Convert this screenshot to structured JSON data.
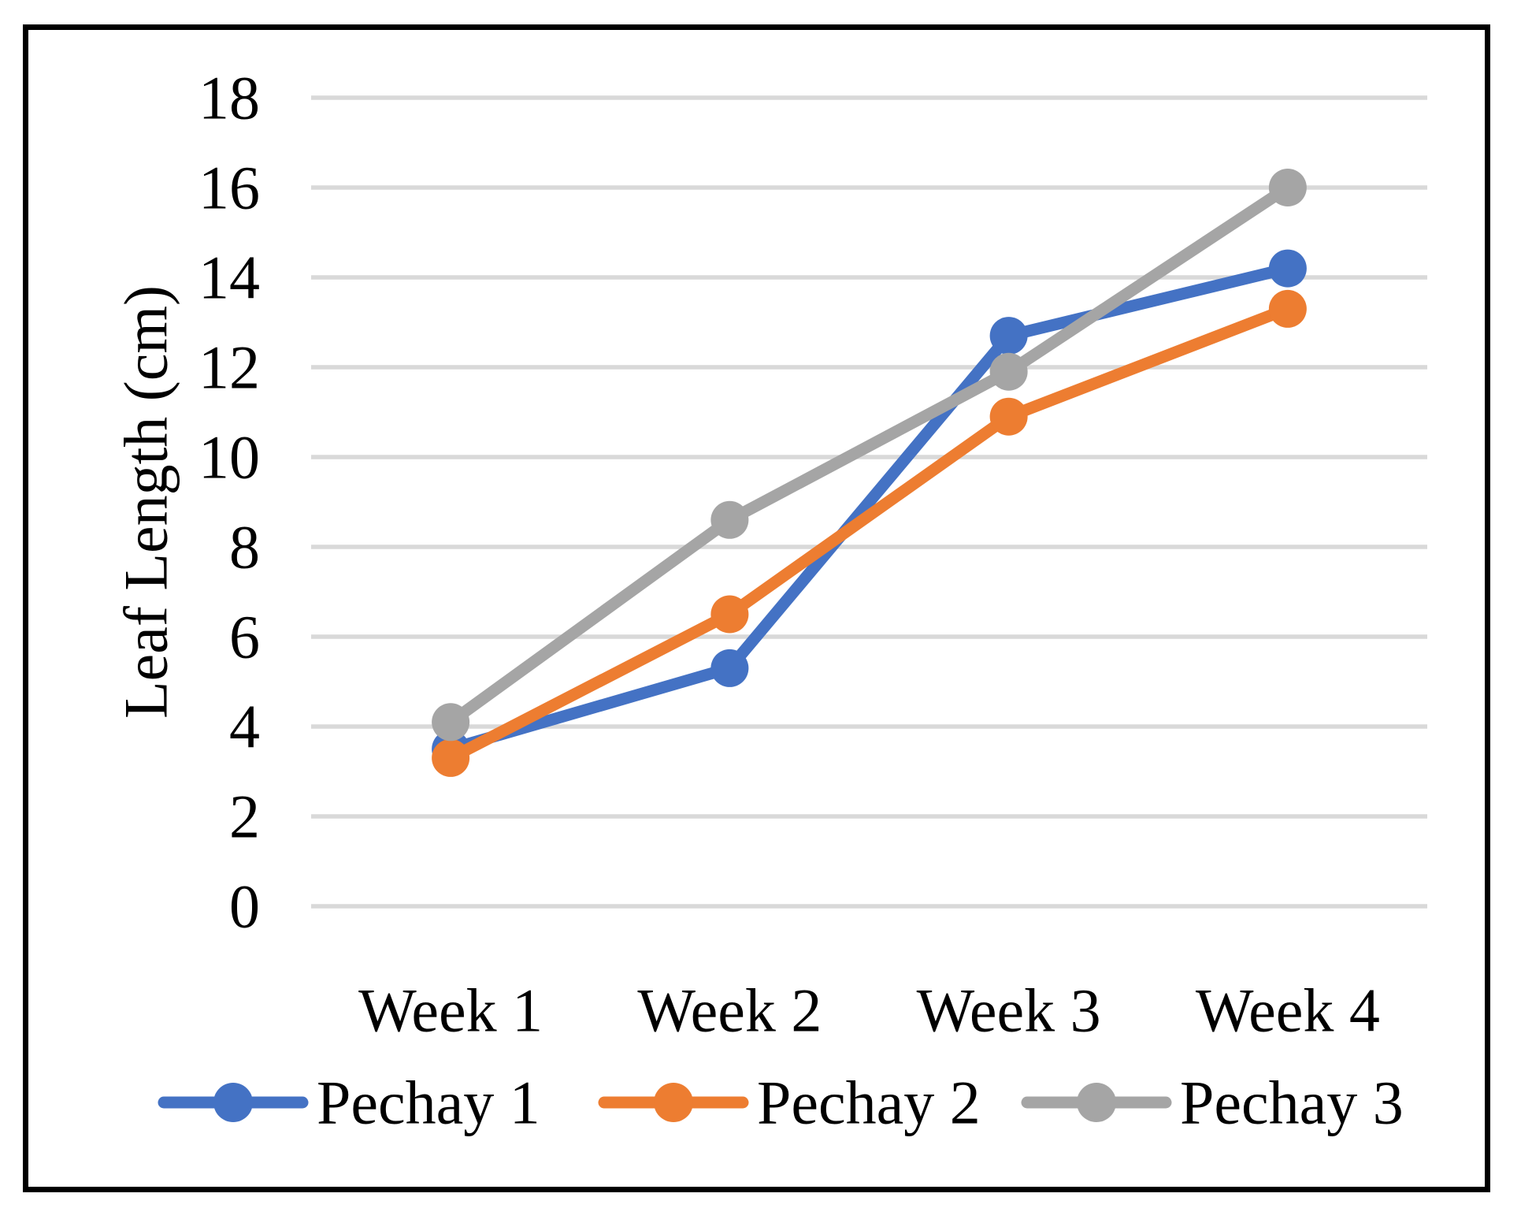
{
  "chart_data": {
    "type": "line",
    "title": "",
    "categories": [
      "Week 1",
      "Week 2",
      "Week 3",
      "Week 4"
    ],
    "series": [
      {
        "name": "Pechay 1",
        "color": "#4472C4",
        "values": [
          3.5,
          5.3,
          12.7,
          14.2
        ]
      },
      {
        "name": "Pechay 2",
        "color": "#ED7D31",
        "values": [
          3.3,
          6.5,
          10.9,
          13.3
        ]
      },
      {
        "name": "Pechay 3",
        "color": "#A5A5A5",
        "values": [
          4.1,
          8.6,
          11.9,
          16.0
        ]
      }
    ],
    "xlabel": "",
    "ylabel": "Leaf Length (cm)",
    "ylim": [
      0,
      18
    ],
    "ytick_step": 2,
    "yticks": [
      0,
      2,
      4,
      6,
      8,
      10,
      12,
      14,
      16,
      18
    ],
    "grid": true,
    "gridline_color": "#D9D9D9",
    "text_color": "#000000",
    "marker": "circle",
    "legend_position": "bottom"
  }
}
